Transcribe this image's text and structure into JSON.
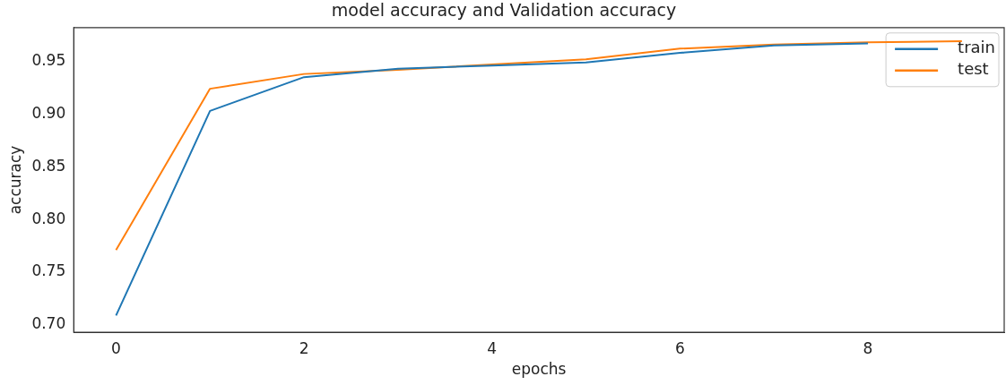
{
  "chart_data": {
    "type": "line",
    "title": "model accuracy and Validation accuracy",
    "xlabel": "epochs",
    "ylabel": "accuracy",
    "x": [
      0,
      1,
      2,
      3,
      4,
      5,
      6,
      7,
      8,
      9
    ],
    "series": [
      {
        "name": "train",
        "color": "#1f77b4",
        "values": [
          0.709,
          0.903,
          0.935,
          0.943,
          0.946,
          0.949,
          0.958,
          0.965,
          0.967,
          null
        ]
      },
      {
        "name": "test",
        "color": "#ff7f0e",
        "values": [
          0.771,
          0.924,
          0.938,
          0.942,
          0.947,
          0.952,
          0.962,
          0.966,
          0.968,
          0.969
        ]
      }
    ],
    "xlim": [
      -0.45,
      9.45
    ],
    "xticks": [
      0,
      2,
      4,
      6,
      8
    ],
    "ylim": [
      0.693,
      0.982
    ],
    "yticks": [
      {
        "value": 0.7,
        "label": "0.70"
      },
      {
        "value": 0.75,
        "label": "0.75"
      },
      {
        "value": 0.8,
        "label": "0.80"
      },
      {
        "value": 0.85,
        "label": "0.85"
      },
      {
        "value": 0.9,
        "label": "0.90"
      },
      {
        "value": 0.95,
        "label": "0.95"
      }
    ],
    "grid": false,
    "legend": "top right",
    "marker": "none",
    "line_style": "solid"
  }
}
